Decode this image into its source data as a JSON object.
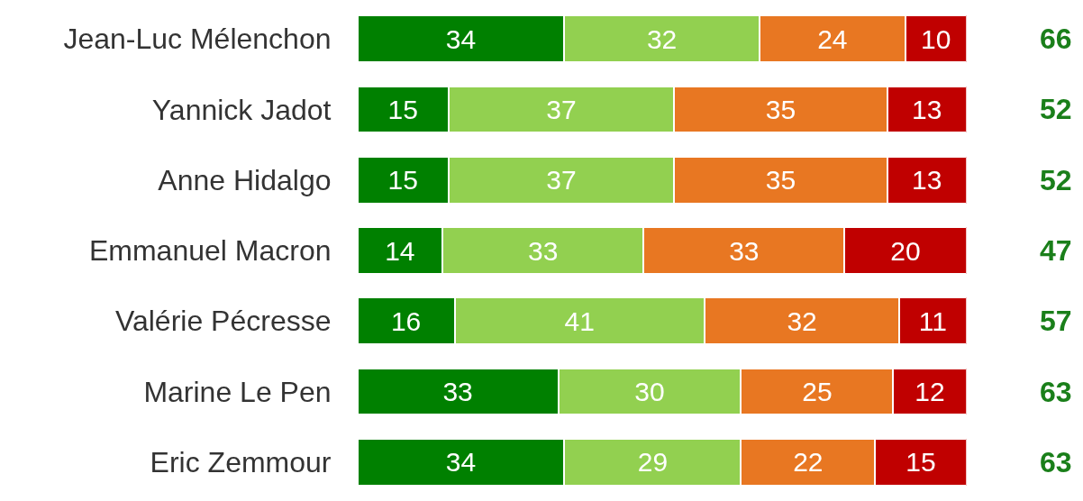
{
  "chart_data": {
    "type": "bar",
    "orientation": "horizontal",
    "stacked": true,
    "data_labels": true,
    "tick_labels": "y",
    "categories": [
      "Jean-Luc Mélenchon",
      "Yannick Jadot",
      "Anne Hidalgo",
      "Emmanuel Macron",
      "Valérie Pécresse",
      "Marine Le Pen",
      "Eric Zemmour"
    ],
    "xlim": [
      0,
      100
    ],
    "series": [
      {
        "color": "#008000",
        "values": [
          34,
          15,
          15,
          14,
          16,
          33,
          34
        ]
      },
      {
        "color": "#92d050",
        "values": [
          32,
          37,
          37,
          33,
          41,
          30,
          29
        ]
      },
      {
        "color": "#e87722",
        "values": [
          24,
          35,
          35,
          33,
          32,
          25,
          22
        ]
      },
      {
        "color": "#c00000",
        "values": [
          10,
          13,
          13,
          20,
          11,
          12,
          15
        ]
      }
    ],
    "annotations": [
      "66",
      "52",
      "52",
      "47",
      "57",
      "63",
      "63"
    ]
  }
}
